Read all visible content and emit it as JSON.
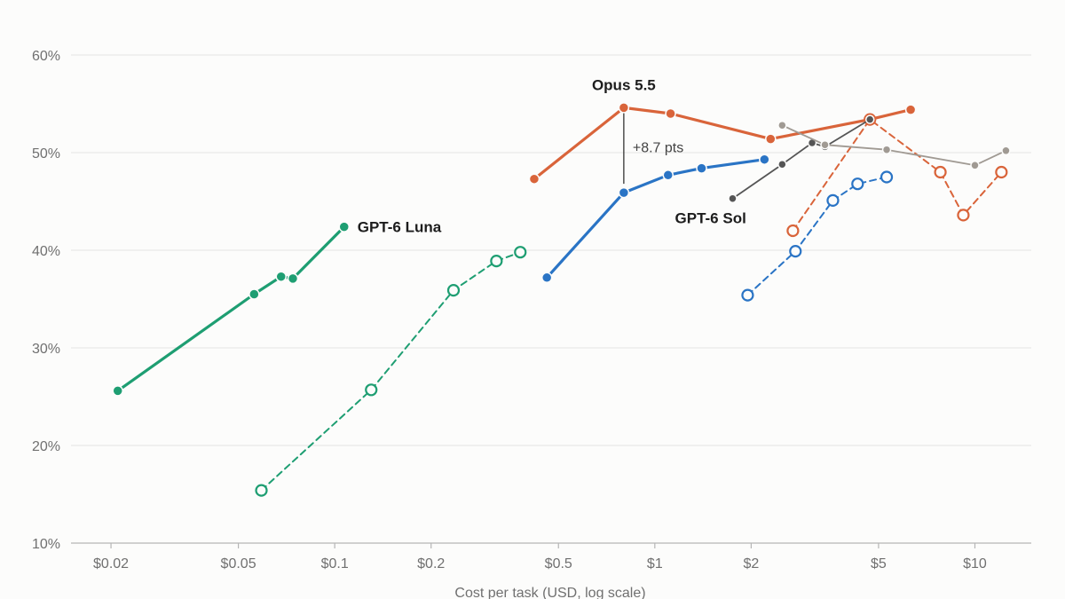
{
  "chart_data": {
    "type": "line",
    "xlabel": "Cost per task (USD, log scale)",
    "ylabel": "",
    "x_scale": "log",
    "xlim": [
      0.015,
      15
    ],
    "ylim": [
      10,
      62
    ],
    "x_ticks": [
      {
        "value": 0.02,
        "label": "$0.02"
      },
      {
        "value": 0.05,
        "label": "$0.05"
      },
      {
        "value": 0.1,
        "label": "$0.1"
      },
      {
        "value": 0.2,
        "label": "$0.2"
      },
      {
        "value": 0.5,
        "label": "$0.5"
      },
      {
        "value": 1,
        "label": "$1"
      },
      {
        "value": 2,
        "label": "$2"
      },
      {
        "value": 5,
        "label": "$5"
      },
      {
        "value": 10,
        "label": "$10"
      }
    ],
    "y_ticks": [
      {
        "value": 10,
        "label": "10%"
      },
      {
        "value": 20,
        "label": "20%"
      },
      {
        "value": 30,
        "label": "30%"
      },
      {
        "value": 40,
        "label": "40%"
      },
      {
        "value": 50,
        "label": "50%"
      },
      {
        "value": 60,
        "label": "60%"
      }
    ],
    "grid": "horizontal",
    "colors": {
      "green": "#1e9e72",
      "orange": "#d9643a",
      "blue": "#2a74c5",
      "dark_gray": "#555555",
      "light_gray": "#a09a93",
      "axis": "#b5b5b5",
      "grid": "#e3e3e3"
    },
    "series": [
      {
        "name": "GPT-6 Luna",
        "color": "#1e9e72",
        "style": "solid",
        "marker": "filled",
        "points": [
          [
            0.021,
            25.6
          ],
          [
            0.056,
            35.5
          ],
          [
            0.068,
            37.3
          ],
          [
            0.074,
            37.1
          ],
          [
            0.107,
            42.4
          ]
        ]
      },
      {
        "name": "",
        "color": "#1e9e72",
        "style": "dashed",
        "marker": "hollow",
        "points": [
          [
            0.059,
            15.4
          ],
          [
            0.13,
            25.7
          ],
          [
            0.235,
            35.9
          ],
          [
            0.32,
            38.9
          ],
          [
            0.38,
            39.8
          ]
        ]
      },
      {
        "name": "Opus 5.5",
        "color": "#d9643a",
        "style": "solid",
        "marker": "filled",
        "points": [
          [
            0.42,
            47.3
          ],
          [
            0.8,
            54.6
          ],
          [
            1.12,
            54.0
          ],
          [
            2.3,
            51.4
          ],
          [
            4.7,
            53.4
          ],
          [
            6.3,
            54.4
          ]
        ]
      },
      {
        "name": "GPT-6 Sol",
        "color": "#2a74c5",
        "style": "solid",
        "marker": "filled",
        "points": [
          [
            0.46,
            37.2
          ],
          [
            0.8,
            45.9
          ],
          [
            1.1,
            47.7
          ],
          [
            1.4,
            48.4
          ],
          [
            2.2,
            49.3
          ]
        ]
      },
      {
        "name": "",
        "color": "#d9643a",
        "style": "dashed",
        "marker": "hollow",
        "points": [
          [
            2.7,
            42.0
          ],
          [
            4.7,
            53.4
          ],
          [
            7.8,
            48.0
          ],
          [
            9.2,
            43.6
          ],
          [
            12.1,
            48.0
          ]
        ]
      },
      {
        "name": "",
        "color": "#2a74c5",
        "style": "dashed",
        "marker": "hollow",
        "points": [
          [
            1.95,
            35.4
          ],
          [
            2.75,
            39.9
          ],
          [
            3.6,
            45.1
          ],
          [
            4.3,
            46.8
          ],
          [
            5.3,
            47.5
          ]
        ]
      },
      {
        "name": "",
        "color": "#555555",
        "style": "solid",
        "marker": "filled",
        "thin": true,
        "points": [
          [
            1.75,
            45.3
          ],
          [
            2.5,
            48.8
          ],
          [
            3.1,
            51.0
          ],
          [
            3.4,
            50.6
          ],
          [
            4.7,
            53.4
          ]
        ]
      },
      {
        "name": "",
        "color": "#a09a93",
        "style": "solid",
        "marker": "filled",
        "thin": true,
        "points": [
          [
            2.5,
            52.8
          ],
          [
            3.4,
            50.8
          ],
          [
            5.3,
            50.3
          ],
          [
            10.0,
            48.7
          ],
          [
            12.5,
            50.2
          ]
        ]
      }
    ],
    "labels": [
      {
        "text": "GPT-6 Luna",
        "x": 0.107,
        "y": 42.4,
        "anchor": "right-of"
      },
      {
        "text": "Opus 5.5",
        "x": 0.8,
        "y": 54.6,
        "anchor": "above"
      },
      {
        "text": "GPT-6 Sol",
        "x": 1.4,
        "y": 48.4,
        "anchor": "below"
      }
    ],
    "annotations": [
      {
        "text": "+8.7 pts",
        "x": 0.8,
        "y_from": 45.9,
        "y_to": 54.6
      }
    ]
  }
}
